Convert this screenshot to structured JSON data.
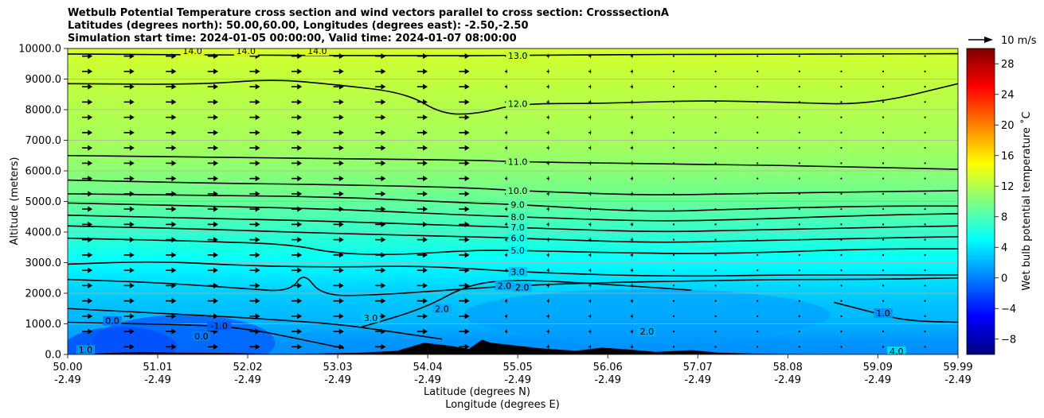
{
  "title": {
    "line1": "Wetbulb Potential Temperature cross section and wind vectors parallel to cross section: CrosssectionA",
    "line2": "Latitudes (degrees north): 50.00,60.00, Longitudes (degrees east): -2.50,-2.50",
    "line3": "Simulation start time: 2024-01-05 00:00:00, Valid time: 2024-01-07 08:00:00"
  },
  "quiver_key_label": "10 m/s",
  "colors": {
    "background": "#ffffff",
    "terrain": "#000000",
    "contour": "#000000",
    "grid": "#b0b0b0"
  },
  "chart_data": {
    "type": "heatmap",
    "xlabel_line1": "Latitude (degrees N)",
    "xlabel_line2": "Longitude (degrees E)",
    "ylabel": "Altitude (meters)",
    "colorbar_label": "Wet bulb potential temperature $^\\circ$C",
    "colorbar_label_display": "Wet bulb potential temperature ˚C",
    "colormap": "jet",
    "xlim": [
      50.0,
      59.99
    ],
    "ylim": [
      0,
      10000
    ],
    "grid": "horizontal",
    "x_ticks": [
      {
        "lat": "50.00",
        "lon": "-2.49",
        "value": 50.0
      },
      {
        "lat": "51.01",
        "lon": "-2.49",
        "value": 51.01
      },
      {
        "lat": "52.02",
        "lon": "-2.49",
        "value": 52.02
      },
      {
        "lat": "53.03",
        "lon": "-2.49",
        "value": 53.03
      },
      {
        "lat": "54.04",
        "lon": "-2.49",
        "value": 54.04
      },
      {
        "lat": "55.05",
        "lon": "-2.49",
        "value": 55.05
      },
      {
        "lat": "56.06",
        "lon": "-2.49",
        "value": 56.06
      },
      {
        "lat": "57.07",
        "lon": "-2.49",
        "value": 57.07
      },
      {
        "lat": "58.08",
        "lon": "-2.49",
        "value": 58.08
      },
      {
        "lat": "59.09",
        "lon": "-2.49",
        "value": 59.09
      },
      {
        "lat": "59.99",
        "lon": "-2.49",
        "value": 59.99
      }
    ],
    "y_ticks": [
      {
        "label": "0.0",
        "value": 0
      },
      {
        "label": "1000.0",
        "value": 1000
      },
      {
        "label": "2000.0",
        "value": 2000
      },
      {
        "label": "3000.0",
        "value": 3000
      },
      {
        "label": "4000.0",
        "value": 4000
      },
      {
        "label": "5000.0",
        "value": 5000
      },
      {
        "label": "6000.0",
        "value": 6000
      },
      {
        "label": "7000.0",
        "value": 7000
      },
      {
        "label": "8000.0",
        "value": 8000
      },
      {
        "label": "9000.0",
        "value": 9000
      },
      {
        "label": "10000.0",
        "value": 10000
      }
    ],
    "colorbar_range": [
      -10,
      30
    ],
    "colorbar_ticks": [
      {
        "label": "−8",
        "value": -8
      },
      {
        "label": "−4",
        "value": -4
      },
      {
        "label": "0",
        "value": 0
      },
      {
        "label": "4",
        "value": 4
      },
      {
        "label": "8",
        "value": 8
      },
      {
        "label": "12",
        "value": 12
      },
      {
        "label": "16",
        "value": 16
      },
      {
        "label": "20",
        "value": 20
      },
      {
        "label": "24",
        "value": 24
      },
      {
        "label": "28",
        "value": 28
      }
    ],
    "background_levels": [
      {
        "height": 0,
        "temp": 0.5
      },
      {
        "height": 500,
        "temp": 1.0
      },
      {
        "height": 1000,
        "temp": 2.0
      },
      {
        "height": 2000,
        "temp": 3.0
      },
      {
        "height": 3000,
        "temp": 5.0
      },
      {
        "height": 4000,
        "temp": 7.0
      },
      {
        "height": 5000,
        "temp": 9.0
      },
      {
        "height": 6000,
        "temp": 10.5
      },
      {
        "height": 7000,
        "temp": 11.5
      },
      {
        "height": 8000,
        "temp": 12.0
      },
      {
        "height": 9000,
        "temp": 12.6
      },
      {
        "height": 10000,
        "temp": 13.3
      }
    ],
    "contours": [
      {
        "label": "13.0",
        "points": [
          [
            50.0,
            9820
          ],
          [
            52.0,
            9780
          ],
          [
            54.0,
            9760
          ],
          [
            55.05,
            9770
          ],
          [
            56.0,
            9800
          ],
          [
            57.5,
            9810
          ],
          [
            59.0,
            9820
          ],
          [
            59.99,
            9830
          ]
        ]
      },
      {
        "label": "12.0",
        "points": [
          [
            50.0,
            8850
          ],
          [
            51.5,
            8820
          ],
          [
            52.3,
            9000
          ],
          [
            53.0,
            8820
          ],
          [
            53.8,
            8550
          ],
          [
            54.2,
            7850
          ],
          [
            54.6,
            7860
          ],
          [
            55.05,
            8200
          ],
          [
            56.0,
            8200
          ],
          [
            57.0,
            8300
          ],
          [
            58.0,
            8250
          ],
          [
            59.0,
            8150
          ],
          [
            59.99,
            8850
          ]
        ]
      },
      {
        "label": "11.0",
        "points": [
          [
            50.0,
            6500
          ],
          [
            51.5,
            6450
          ],
          [
            53.0,
            6400
          ],
          [
            54.5,
            6350
          ],
          [
            55.05,
            6300
          ],
          [
            56.0,
            6250
          ],
          [
            57.5,
            6200
          ],
          [
            58.5,
            6150
          ],
          [
            59.99,
            6050
          ]
        ]
      },
      {
        "label": "10.0",
        "points": [
          [
            50.0,
            5700
          ],
          [
            51.5,
            5600
          ],
          [
            53.0,
            5550
          ],
          [
            54.5,
            5450
          ],
          [
            55.05,
            5350
          ],
          [
            56.5,
            5200
          ],
          [
            57.5,
            5250
          ],
          [
            58.5,
            5300
          ],
          [
            59.99,
            5350
          ]
        ]
      },
      {
        "label": "9.0",
        "points": [
          [
            50.0,
            5250
          ],
          [
            51.5,
            5200
          ],
          [
            53.0,
            5150
          ],
          [
            54.5,
            4950
          ],
          [
            55.05,
            4900
          ],
          [
            56.5,
            4650
          ],
          [
            57.5,
            4750
          ],
          [
            59.0,
            4850
          ],
          [
            59.99,
            4850
          ]
        ]
      },
      {
        "label": "8.0",
        "points": [
          [
            50.0,
            4950
          ],
          [
            51.5,
            4850
          ],
          [
            53.0,
            4750
          ],
          [
            54.5,
            4550
          ],
          [
            55.05,
            4500
          ],
          [
            56.5,
            4350
          ],
          [
            57.5,
            4400
          ],
          [
            59.0,
            4550
          ],
          [
            59.99,
            4600
          ]
        ]
      },
      {
        "label": "7.0",
        "points": [
          [
            50.0,
            4550
          ],
          [
            51.5,
            4450
          ],
          [
            53.0,
            4350
          ],
          [
            54.5,
            4200
          ],
          [
            55.05,
            4150
          ],
          [
            56.5,
            4000
          ],
          [
            57.5,
            4050
          ],
          [
            59.0,
            4150
          ],
          [
            59.99,
            4200
          ]
        ]
      },
      {
        "label": "6.0",
        "points": [
          [
            50.0,
            4200
          ],
          [
            51.5,
            4100
          ],
          [
            53.0,
            3950
          ],
          [
            54.5,
            3850
          ],
          [
            55.05,
            3800
          ],
          [
            56.5,
            3650
          ],
          [
            57.5,
            3700
          ],
          [
            59.0,
            3800
          ],
          [
            59.99,
            3850
          ]
        ]
      },
      {
        "label": "5.0",
        "points": [
          [
            50.0,
            3800
          ],
          [
            51.5,
            3700
          ],
          [
            52.5,
            3600
          ],
          [
            53.0,
            3300
          ],
          [
            53.7,
            3250
          ],
          [
            54.5,
            3400
          ],
          [
            55.05,
            3400
          ],
          [
            56.5,
            3300
          ],
          [
            57.5,
            3300
          ],
          [
            59.0,
            3450
          ],
          [
            59.99,
            3450
          ]
        ]
      },
      {
        "label": "3.0",
        "points": [
          [
            50.0,
            2950
          ],
          [
            51.0,
            3050
          ],
          [
            52.0,
            2900
          ],
          [
            53.0,
            2850
          ],
          [
            54.0,
            2900
          ],
          [
            55.05,
            2700
          ],
          [
            56.0,
            2600
          ],
          [
            57.0,
            2550
          ],
          [
            58.0,
            2600
          ],
          [
            59.0,
            2600
          ],
          [
            59.99,
            2600
          ]
        ]
      },
      {
        "label": "2.0",
        "points": [
          [
            50.0,
            2450
          ],
          [
            51.0,
            2350
          ],
          [
            52.0,
            2150
          ],
          [
            52.5,
            2050
          ],
          [
            52.65,
            2700
          ],
          [
            52.85,
            1900
          ],
          [
            53.5,
            1950
          ],
          [
            54.0,
            2050
          ],
          [
            54.5,
            2150
          ],
          [
            55.05,
            2250
          ],
          [
            56.0,
            2350
          ],
          [
            57.0,
            2400
          ],
          [
            58.0,
            2450
          ],
          [
            59.0,
            2450
          ],
          [
            59.99,
            2500
          ]
        ]
      },
      {
        "label": "1.0",
        "points": [
          [
            50.0,
            1500
          ],
          [
            51.0,
            1350
          ],
          [
            52.0,
            1200
          ],
          [
            53.0,
            1000
          ],
          [
            53.5,
            800
          ],
          [
            54.2,
            500
          ]
        ]
      },
      {
        "label": "0.0",
        "points": [
          [
            50.0,
            1050
          ],
          [
            50.8,
            1000
          ],
          [
            51.6,
            950
          ],
          [
            52.1,
            800
          ],
          [
            52.6,
            500
          ],
          [
            53.1,
            200
          ]
        ]
      },
      {
        "label": "3.0",
        "points": [
          [
            53.3,
            900
          ],
          [
            54.0,
            1500
          ],
          [
            54.5,
            2300
          ],
          [
            55.05,
            2450
          ],
          [
            56.0,
            2300
          ],
          [
            57.0,
            2100
          ]
        ]
      },
      {
        "label": "1.0",
        "points": [
          [
            58.6,
            1700
          ],
          [
            59.0,
            1400
          ],
          [
            59.4,
            1100
          ],
          [
            59.99,
            1050
          ]
        ]
      }
    ],
    "contour_label_positions": [
      {
        "label": "14.0",
        "x": 51.4,
        "y": 9920
      },
      {
        "label": "14.0",
        "x": 52.0,
        "y": 9920
      },
      {
        "label": "14.0",
        "x": 52.8,
        "y": 9920
      },
      {
        "label": "13.0",
        "x": 55.05,
        "y": 9770
      },
      {
        "label": "12.0",
        "x": 55.05,
        "y": 8200
      },
      {
        "label": "11.0",
        "x": 55.05,
        "y": 6300
      },
      {
        "label": "10.0",
        "x": 55.05,
        "y": 5350
      },
      {
        "label": "9.0",
        "x": 55.05,
        "y": 4900
      },
      {
        "label": "8.0",
        "x": 55.05,
        "y": 4500
      },
      {
        "label": "7.0",
        "x": 55.05,
        "y": 4150
      },
      {
        "label": "6.0",
        "x": 55.05,
        "y": 3800
      },
      {
        "label": "5.0",
        "x": 55.05,
        "y": 3400
      },
      {
        "label": "3.0",
        "x": 55.05,
        "y": 2700
      },
      {
        "label": "2.0",
        "x": 54.9,
        "y": 2250
      },
      {
        "label": "2.0",
        "x": 55.1,
        "y": 2200
      },
      {
        "label": "2.0",
        "x": 54.2,
        "y": 1500
      },
      {
        "label": "3.0",
        "x": 53.4,
        "y": 1200
      },
      {
        "label": "0.0",
        "x": 50.5,
        "y": 1100
      },
      {
        "label": "-1.0",
        "x": 51.7,
        "y": 930
      },
      {
        "label": "0.0",
        "x": 51.5,
        "y": 600
      },
      {
        "label": "1.0",
        "x": 50.2,
        "y": 150
      },
      {
        "label": "1.0",
        "x": 59.15,
        "y": 1350
      },
      {
        "label": "2.0",
        "x": 56.5,
        "y": 750
      },
      {
        "label": "4.0",
        "x": 59.3,
        "y": 100
      }
    ],
    "terrain": [
      [
        50.0,
        0
      ],
      [
        50.3,
        30
      ],
      [
        50.8,
        80
      ],
      [
        51.2,
        60
      ],
      [
        51.8,
        50
      ],
      [
        52.3,
        20
      ],
      [
        52.8,
        30
      ],
      [
        53.3,
        60
      ],
      [
        53.7,
        120
      ],
      [
        54.0,
        380
      ],
      [
        54.3,
        280
      ],
      [
        54.5,
        180
      ],
      [
        54.65,
        480
      ],
      [
        54.75,
        380
      ],
      [
        55.0,
        300
      ],
      [
        55.3,
        200
      ],
      [
        55.7,
        120
      ],
      [
        56.0,
        220
      ],
      [
        56.3,
        160
      ],
      [
        56.6,
        80
      ],
      [
        57.0,
        140
      ],
      [
        57.3,
        60
      ],
      [
        57.7,
        30
      ],
      [
        58.0,
        20
      ],
      [
        58.5,
        0
      ],
      [
        59.99,
        0
      ]
    ],
    "wind_regions": [
      {
        "y_from": 0,
        "y_to": 10000,
        "x_from": 50.0,
        "x_to": 54.5,
        "speed_ms": 6.0
      },
      {
        "y_from": 0,
        "y_to": 10000,
        "x_from": 54.5,
        "x_to": 56.5,
        "speed_ms": 1.5
      },
      {
        "y_from": 0,
        "y_to": 10000,
        "x_from": 56.5,
        "x_to": 59.99,
        "speed_ms": -0.8
      }
    ]
  }
}
